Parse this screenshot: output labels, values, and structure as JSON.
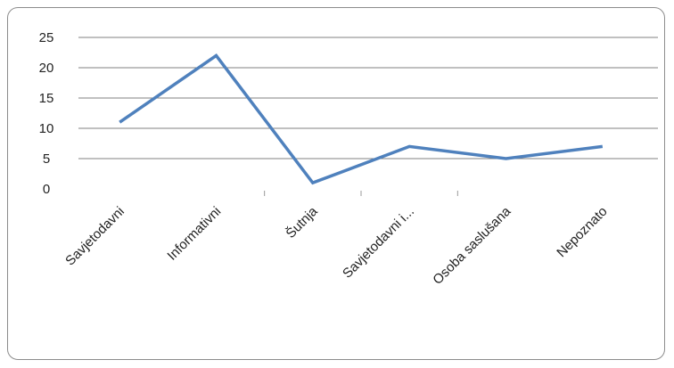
{
  "chart_data": {
    "type": "line",
    "categories": [
      "Savjetodavni",
      "Informativni",
      "Šutnja",
      "Savjetodavni i...",
      "Osoba saslušana",
      "Nepoznato"
    ],
    "series": [
      {
        "values": [
          11,
          22,
          1,
          7,
          5,
          7
        ]
      }
    ],
    "title": "",
    "xlabel": "",
    "ylabel": "",
    "ylim": [
      0,
      25
    ],
    "yticks": [
      "0",
      "5",
      "10",
      "15",
      "20",
      "25"
    ],
    "grid": true,
    "legend": "none",
    "colors": {
      "line": "#4f81bd",
      "grid": "#808080",
      "frame": "#8c8c8c"
    }
  }
}
